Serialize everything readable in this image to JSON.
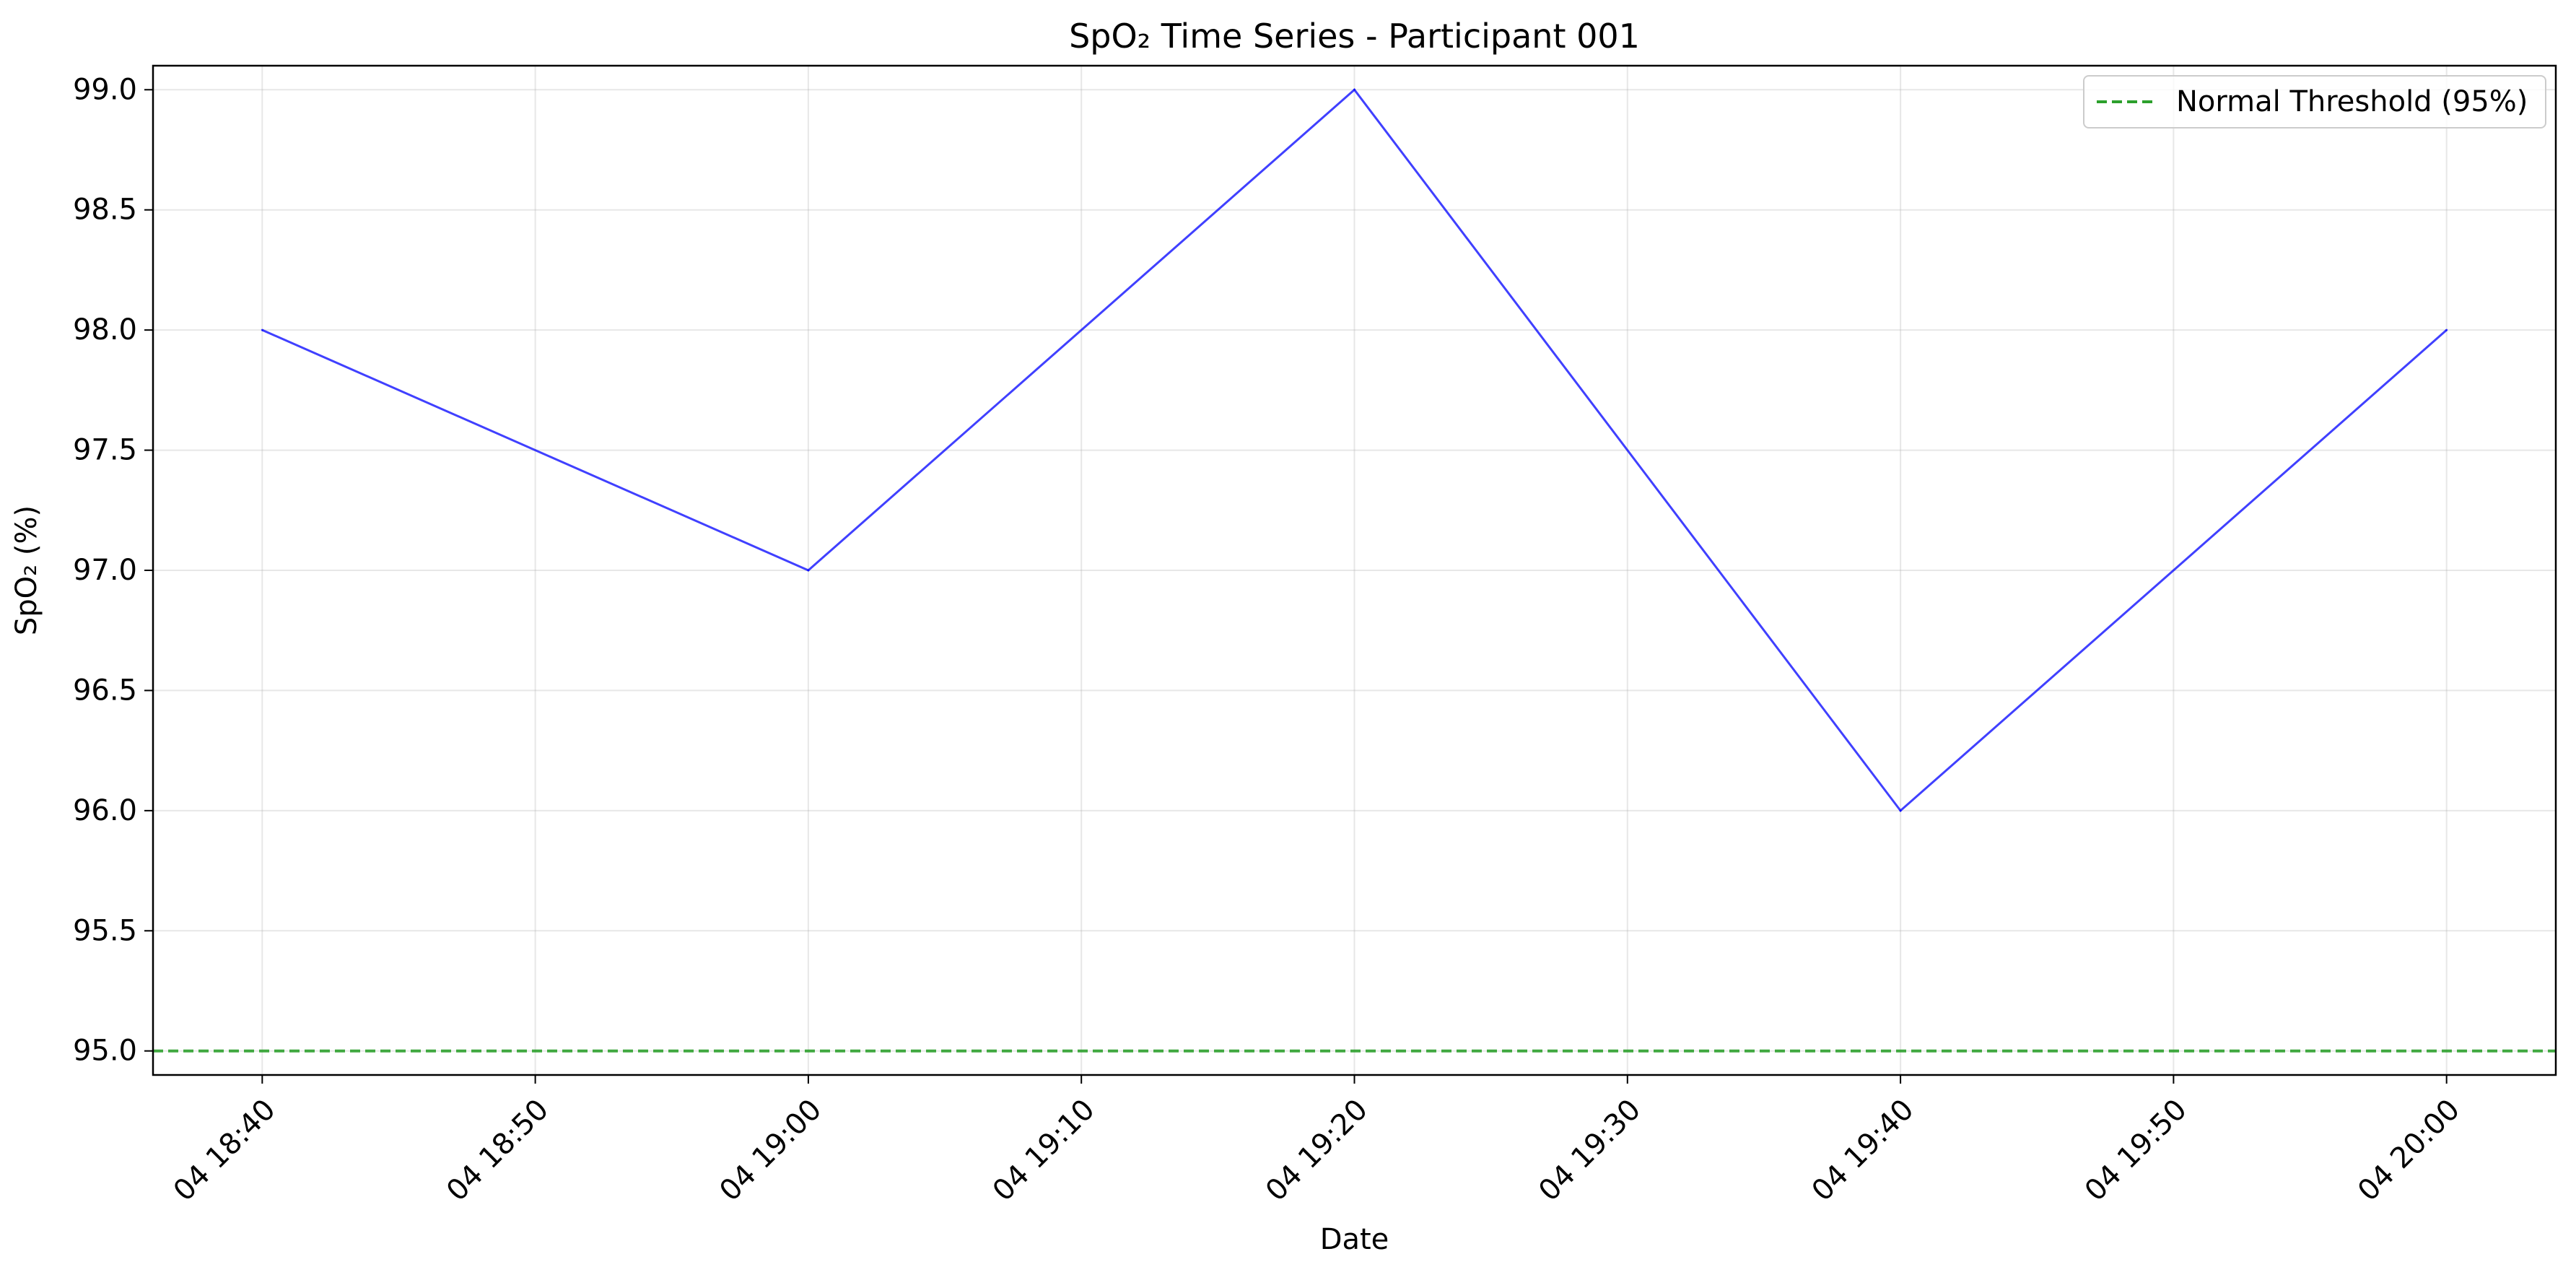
{
  "chart_data": {
    "type": "line",
    "title": "SpO₂ Time Series - Participant 001",
    "xlabel": "Date",
    "ylabel": "SpO₂ (%)",
    "x_tick_labels": [
      "04 18:40",
      "04 18:50",
      "04 19:00",
      "04 19:10",
      "04 19:20",
      "04 19:30",
      "04 19:40",
      "04 19:50",
      "04 20:00"
    ],
    "y_tick_labels": [
      "95.0",
      "95.5",
      "96.0",
      "96.5",
      "97.0",
      "97.5",
      "98.0",
      "98.5",
      "99.0"
    ],
    "x_ticks": [
      "18:40",
      "18:50",
      "19:00",
      "19:10",
      "19:20",
      "19:30",
      "19:40",
      "19:50",
      "20:00"
    ],
    "y_ticks": [
      95.0,
      95.5,
      96.0,
      96.5,
      97.0,
      97.5,
      98.0,
      98.5,
      99.0
    ],
    "xlim": [
      "18:36",
      "20:04"
    ],
    "ylim": [
      94.9,
      99.1
    ],
    "grid": true,
    "legend_position": "top-right",
    "series": [
      {
        "x": [
          "18:40",
          "19:00",
          "19:20",
          "19:40",
          "20:00"
        ],
        "values": [
          98.0,
          97.0,
          99.0,
          96.0,
          98.0
        ],
        "color": "#0000ff"
      }
    ],
    "reference_lines": [
      {
        "name": "Normal Threshold (95%)",
        "y": 95.0,
        "style": "dashed",
        "color": "#2ca02c"
      }
    ]
  }
}
